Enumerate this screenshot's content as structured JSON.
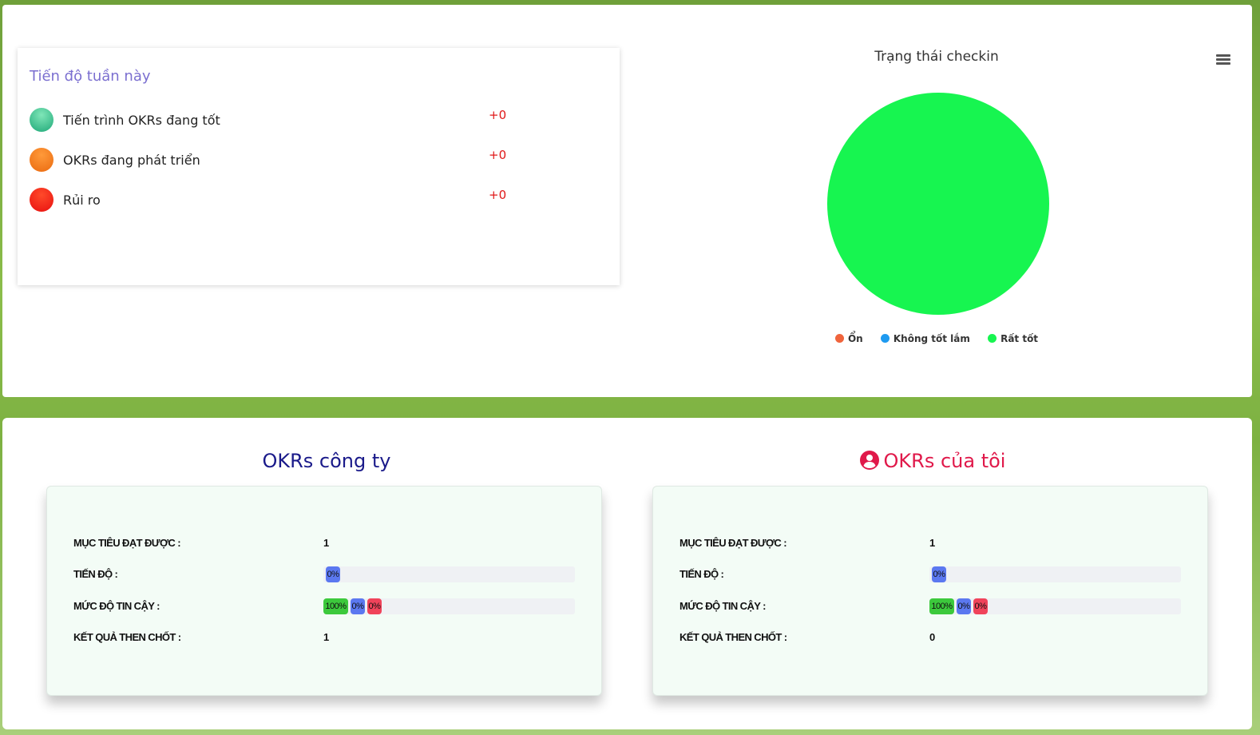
{
  "weekly": {
    "title": "Tiến độ tuần này",
    "items": [
      {
        "label": "Tiến trình OKRs đang tốt",
        "value": "+0"
      },
      {
        "label": "OKRs đang phát triển",
        "value": "+0"
      },
      {
        "label": "Rủi ro",
        "value": "+0"
      }
    ]
  },
  "checkin_chart": {
    "title": "Trạng thái checkin",
    "menu_icon": "hamburger-menu-icon",
    "legend": [
      {
        "label": "Ổn",
        "color": "#f0643c"
      },
      {
        "label": "Không tốt lắm",
        "color": "#1e9af0"
      },
      {
        "label": "Rất tốt",
        "color": "#17f550"
      }
    ]
  },
  "chart_data": {
    "type": "pie",
    "title": "Trạng thái checkin",
    "categories": [
      "Ổn",
      "Không tốt lắm",
      "Rất tốt"
    ],
    "values": [
      0,
      0,
      1
    ],
    "colors": [
      "#f0643c",
      "#1e9af0",
      "#17f550"
    ],
    "legend_position": "bottom"
  },
  "okr_company": {
    "title": "OKRs công ty",
    "objectives_label": "MỤC TIÊU ĐẠT ĐƯỢC :",
    "objectives_value": "1",
    "progress_label": "TIẾN ĐỘ :",
    "progress_text": "0%",
    "progress_value": 0,
    "confidence_label": "MỨC ĐỘ TIN CẬY :",
    "confidence": [
      {
        "text": "100%",
        "color": "green"
      },
      {
        "text": "0%",
        "color": "blue"
      },
      {
        "text": "0%",
        "color": "red"
      }
    ],
    "key_results_label": "KẾT QUẢ THEN CHỐT :",
    "key_results_value": "1"
  },
  "okr_mine": {
    "title": "OKRs của tôi",
    "icon": "user-circle-icon",
    "objectives_label": "MỤC TIÊU ĐẠT ĐƯỢC :",
    "objectives_value": "1",
    "progress_label": "TIẾN ĐỘ :",
    "progress_text": "0%",
    "progress_value": 0,
    "confidence_label": "MỨC ĐỘ TIN CẬY :",
    "confidence": [
      {
        "text": "100%",
        "color": "green"
      },
      {
        "text": "0%",
        "color": "blue"
      },
      {
        "text": "0%",
        "color": "red"
      }
    ],
    "key_results_label": "KẾT QUẢ THEN CHỐT :",
    "key_results_value": "0"
  }
}
